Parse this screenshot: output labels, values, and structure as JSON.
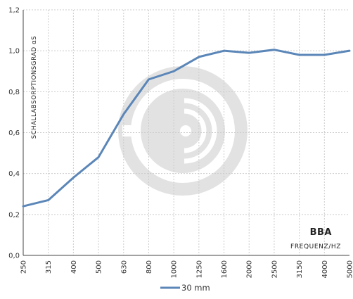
{
  "chart_data": {
    "type": "line",
    "ylabel": "SCHALLABSORPTIONSGRAD αS",
    "xlabel": "FREQUENZ/HZ",
    "brand": "BBA",
    "categories": [
      "250",
      "315",
      "400",
      "500",
      "630",
      "800",
      "1000",
      "1250",
      "1600",
      "2000",
      "2500",
      "3150",
      "4000",
      "5000"
    ],
    "y_ticks": [
      "0,0",
      "0,2",
      "0,4",
      "0,6",
      "0,8",
      "1,0",
      "1,2"
    ],
    "ylim": [
      0,
      1.2
    ],
    "grid": true,
    "legend_position": "bottom-center",
    "series": [
      {
        "name": "30 mm",
        "color": "#5b86b8",
        "values": [
          0.24,
          0.27,
          0.38,
          0.48,
          0.69,
          0.86,
          0.9,
          0.97,
          1.0,
          0.99,
          1.005,
          0.98,
          0.98,
          1.0
        ]
      }
    ]
  }
}
